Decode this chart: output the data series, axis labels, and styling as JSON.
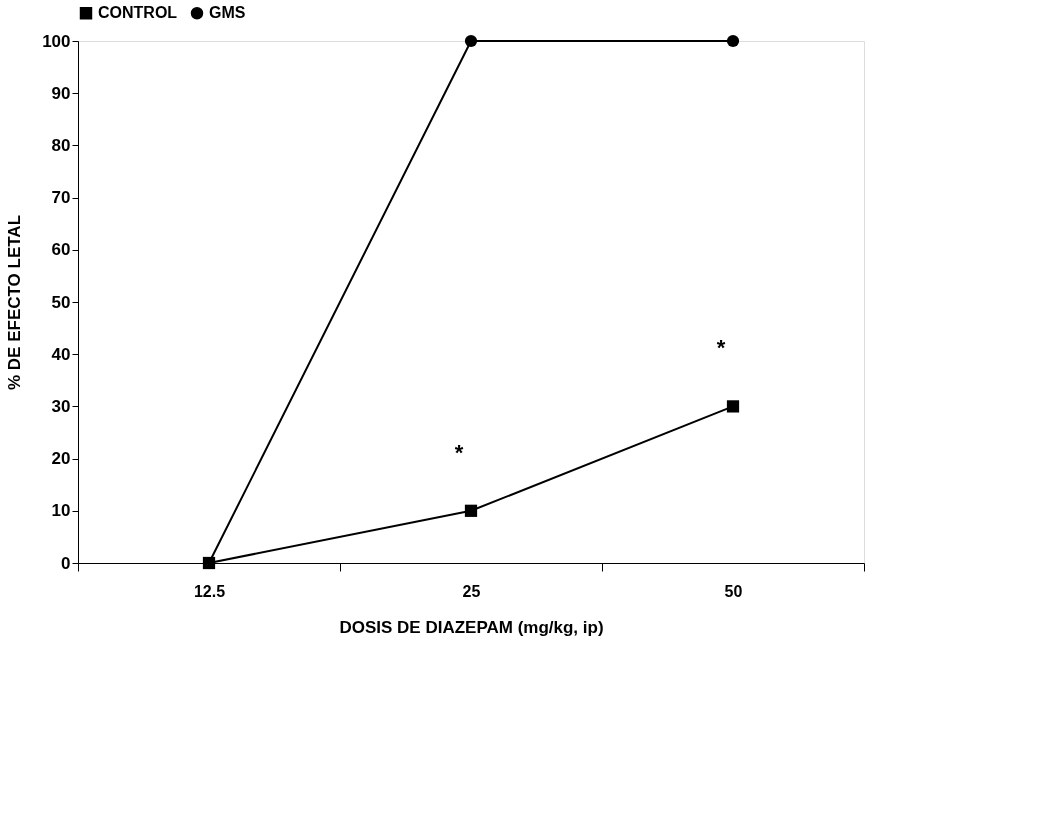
{
  "chart_data": {
    "type": "line",
    "xlabel": "DOSIS  DE  DIAZEPAM  (mg/kg, ip)",
    "ylabel": "%  DE  EFECTO  LETAL",
    "categories": [
      "12.5",
      "25",
      "50"
    ],
    "series": [
      {
        "name": "CONTROL",
        "color": "#000000",
        "marker": "square",
        "values": [
          0,
          10,
          30
        ]
      },
      {
        "name": "GMS",
        "color": "#000000",
        "marker": "circle",
        "values": [
          0,
          100,
          100
        ]
      }
    ],
    "ylim": [
      0,
      100
    ],
    "yticks": [
      0,
      10,
      20,
      30,
      40,
      50,
      60,
      70,
      80,
      90,
      100
    ],
    "grid": false,
    "legend": "top",
    "annotations": [
      {
        "text": "*",
        "x": "25",
        "y": 10
      },
      {
        "text": "*",
        "x": "50",
        "y": 30
      }
    ]
  }
}
